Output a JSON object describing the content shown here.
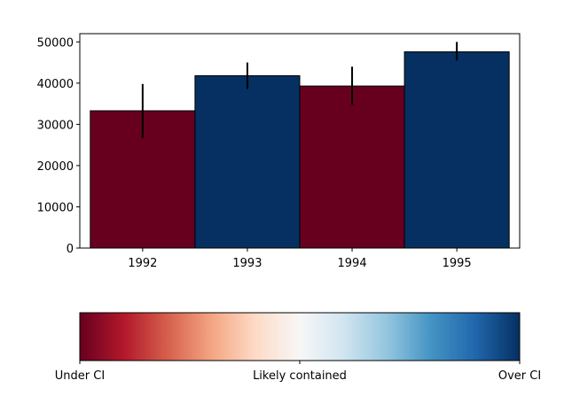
{
  "chart_data": [
    {
      "type": "bar",
      "categories": [
        "1992",
        "1993",
        "1994",
        "1995"
      ],
      "values": [
        33300,
        41800,
        39300,
        47600
      ],
      "error_low": [
        26700,
        38600,
        34800,
        45500
      ],
      "error_high": [
        39800,
        45000,
        44000,
        50000
      ],
      "bar_colors": [
        "#67001f",
        "#053061",
        "#67001f",
        "#053061"
      ],
      "ylim": [
        0,
        52000
      ],
      "yticks": [
        "0",
        "10000",
        "20000",
        "30000",
        "40000",
        "50000"
      ],
      "ytick_values": [
        0,
        10000,
        20000,
        30000,
        40000,
        50000
      ],
      "title": "",
      "xlabel": "",
      "ylabel": "",
      "grid": false
    },
    {
      "type": "colorbar",
      "orientation": "horizontal",
      "tick_labels": [
        "Under CI",
        "Likely contained",
        "Over CI"
      ],
      "tick_positions": [
        0,
        0.5,
        1
      ],
      "colormap": [
        "#67001f",
        "#b2182b",
        "#d6604d",
        "#f4a582",
        "#fddbc7",
        "#f7f7f7",
        "#d1e5f0",
        "#92c5de",
        "#4393c3",
        "#2166ac",
        "#053061"
      ]
    }
  ]
}
